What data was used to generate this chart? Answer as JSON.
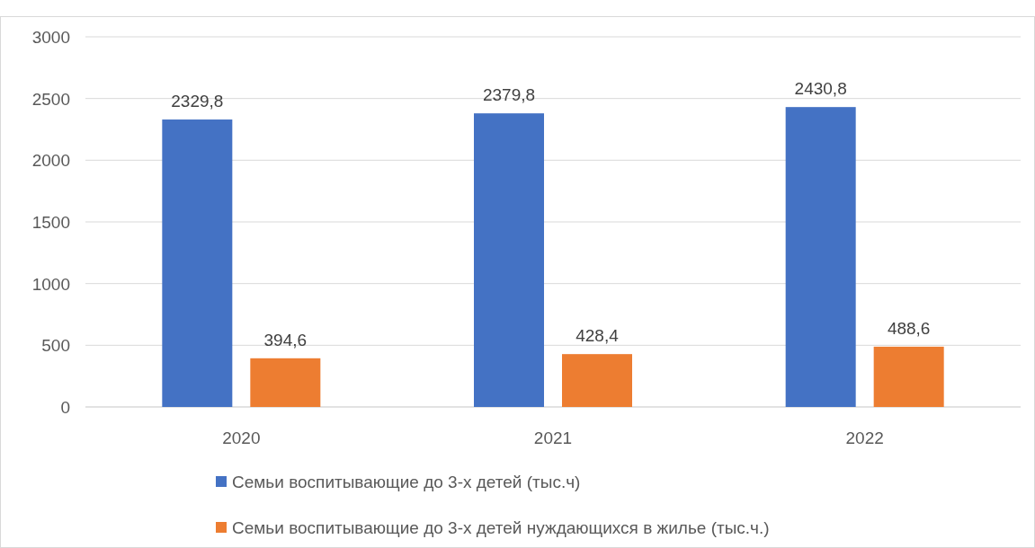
{
  "chart_data": {
    "type": "bar",
    "categories": [
      "2020",
      "2021",
      "2022"
    ],
    "series": [
      {
        "name": "Семьи воспитывающие до 3-х детей (тыс.ч)",
        "color": "#4472c4",
        "values": [
          2329.8,
          2379.8,
          2430.8
        ]
      },
      {
        "name": "Семьи воспитывающие до 3-х детей нуждающихся в жилье (тыс.ч.)",
        "color": "#ed7d31",
        "values": [
          394.6,
          428.4,
          488.6
        ]
      }
    ],
    "ylim": [
      0,
      3000
    ],
    "yticks": [
      0,
      500,
      1000,
      1500,
      2000,
      2500,
      3000
    ],
    "grid": "y",
    "legend": "bottom",
    "value_labels": [
      [
        "2329,8",
        "2379,8",
        "2430,8"
      ],
      [
        "394,6",
        "428,4",
        "488,6"
      ]
    ]
  }
}
